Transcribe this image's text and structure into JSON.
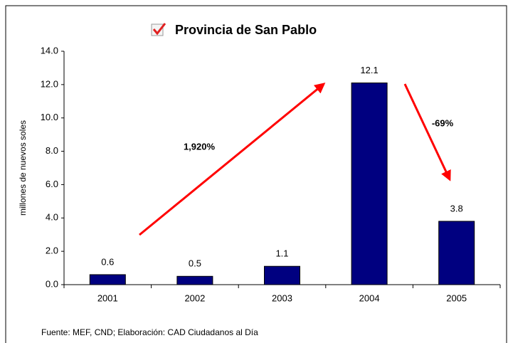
{
  "chart_data": {
    "type": "bar",
    "title": "Provincia de San Pablo",
    "y_axis_label": "millones de nuevos soles",
    "categories": [
      "2001",
      "2002",
      "2003",
      "2004",
      "2005"
    ],
    "values": [
      0.6,
      0.5,
      1.1,
      12.1,
      3.8
    ],
    "color": "#000080",
    "ylim": [
      0,
      14
    ],
    "yticks": [
      {
        "value": 0,
        "label": "0.0"
      },
      {
        "value": 2,
        "label": "2.0"
      },
      {
        "value": 4,
        "label": "4.0"
      },
      {
        "value": 6,
        "label": "6.0"
      },
      {
        "value": 8,
        "label": "8.0"
      },
      {
        "value": 10,
        "label": "10.0"
      },
      {
        "value": 12,
        "label": "12.0"
      },
      {
        "value": 14,
        "label": "14.0"
      }
    ],
    "grid": false,
    "annotations": [
      "1,920%",
      "-69%"
    ],
    "source": "Fuente: MEF, CND; Elaboración: CAD Ciudadanos al Día"
  }
}
